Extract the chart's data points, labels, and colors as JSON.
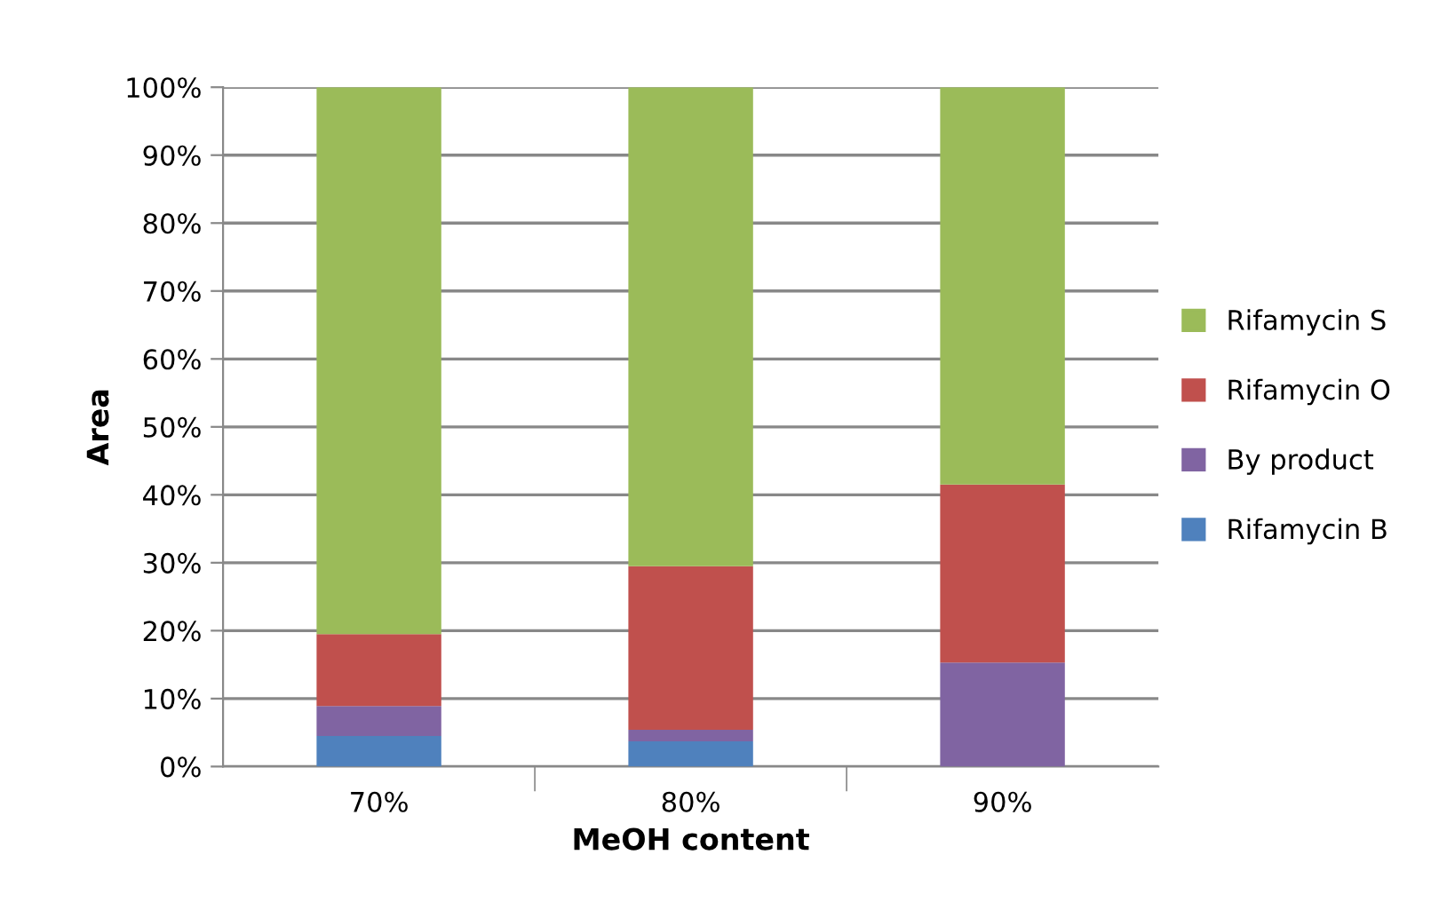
{
  "chart_data": {
    "type": "bar",
    "stacked": true,
    "xlabel": "MeOH content",
    "ylabel": "Area",
    "categories": [
      "70%",
      "80%",
      "90%"
    ],
    "series": [
      {
        "name": "Rifamycin B",
        "color": "#4f81bd",
        "values": [
          4.5,
          3.7,
          0
        ]
      },
      {
        "name": "By product",
        "color": "#8064a2",
        "values": [
          4.4,
          1.7,
          15.3
        ]
      },
      {
        "name": "Rifamycin O",
        "color": "#c0504d",
        "values": [
          10.6,
          24.1,
          26.2
        ]
      },
      {
        "name": "Rifamycin S",
        "color": "#9bbb59",
        "values": [
          80.5,
          70.5,
          58.5
        ]
      }
    ],
    "ylim": [
      0,
      100
    ],
    "yticks": [
      {
        "value": 0,
        "label": "0%"
      },
      {
        "value": 10,
        "label": "10%"
      },
      {
        "value": 20,
        "label": "20%"
      },
      {
        "value": 30,
        "label": "30%"
      },
      {
        "value": 40,
        "label": "40%"
      },
      {
        "value": 50,
        "label": "50%"
      },
      {
        "value": 60,
        "label": "60%"
      },
      {
        "value": 70,
        "label": "70%"
      },
      {
        "value": 80,
        "label": "80%"
      },
      {
        "value": 90,
        "label": "90%"
      },
      {
        "value": 100,
        "label": "100%"
      }
    ],
    "grid": "y",
    "legend": "right"
  }
}
